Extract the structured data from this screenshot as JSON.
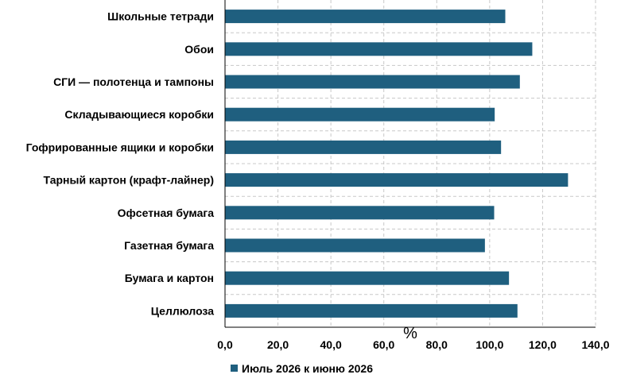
{
  "chart_data": {
    "type": "bar",
    "orientation": "horizontal",
    "categories": [
      "Целлюлоза",
      "Бумага и картон",
      "Газетная бумага",
      "Офсетная бумага",
      "Тарный картон (крафт-лайнер)",
      "Гофрированные ящики и коробки",
      "Складывающиеся коробки",
      "СГИ — полотенца и тампоны",
      "Обои",
      "Школьные тетради"
    ],
    "series": [
      {
        "name": "Июль 2026 к июню 2026",
        "color": "#1f5f7f",
        "values": [
          110.5,
          107.3,
          98.2,
          101.7,
          129.6,
          104.3,
          101.9,
          111.4,
          116.1,
          105.9
        ]
      }
    ],
    "xlim": [
      0,
      140
    ],
    "x_ticks": [
      "0,0",
      "20,0",
      "40,0",
      "60,0",
      "80,0",
      "100,0",
      "120,0",
      "140,0"
    ],
    "x_tick_values": [
      0,
      20,
      40,
      60,
      80,
      100,
      120,
      140
    ],
    "xlabel": "%",
    "grid": "dashed vertical and horizontal",
    "legend_position": "bottom"
  }
}
